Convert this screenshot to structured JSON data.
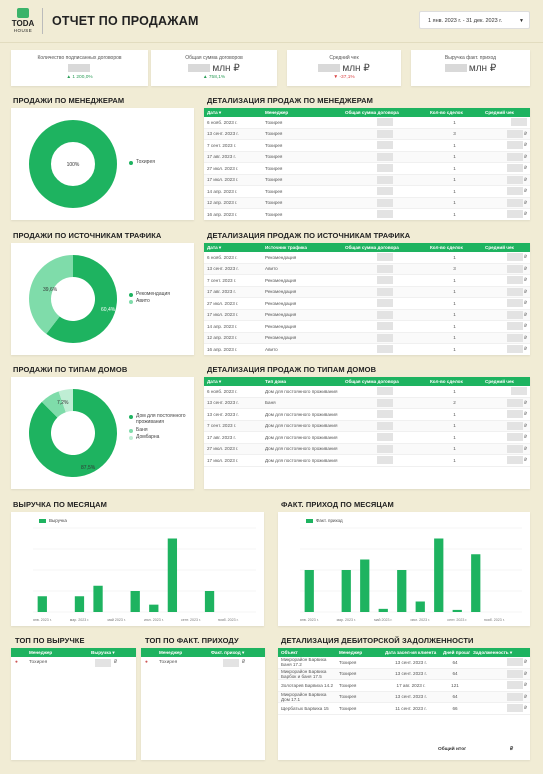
{
  "header": {
    "logo_top": "TODA",
    "logo_bottom": "HOUSE",
    "title": "ОТЧЕТ ПО ПРОДАЖАМ",
    "date_range": "1 янв. 2023 г. - 31 дек. 2023 г."
  },
  "kpis": [
    {
      "label": "Количество подписанных договоров",
      "value": "",
      "delta": "▲ 1 200,0%",
      "dir": "up"
    },
    {
      "label": "Общая сумма договоров",
      "value": "млн ₽",
      "delta": "▲ 758,1%",
      "dir": "up"
    },
    {
      "label": "Средний чек",
      "value": "млн ₽",
      "delta": "▼ -37,1%",
      "dir": "down"
    },
    {
      "label": "Выручка факт. приход",
      "value": "млн ₽",
      "delta": "",
      "dir": "up"
    }
  ],
  "colors": {
    "accent": "#1eb360",
    "light": "#7fdcaa",
    "pale": "#bfeed4",
    "bg": "#f1ecd5"
  },
  "sections": {
    "sales_by_manager": "ПРОДАЖИ ПО МЕНЕДЖЕРАМ",
    "detail_by_manager": "ДЕТАЛИЗАЦИЯ ПРОДАЖ ПО МЕНЕДЖЕРАМ",
    "sales_by_traffic": "ПРОДАЖИ ПО ИСТОЧНИКАМ ТРАФИКА",
    "detail_by_traffic": "ДЕТАЛИЗАЦИЯ ПРОДАЖ ПО ИСТОЧНИКАМ ТРАФИКА",
    "sales_by_house": "ПРОДАЖИ ПО ТИПАМ ДОМОВ",
    "detail_by_house": "ДЕТАЛИЗАЦИЯ ПРОДАЖ ПО ТИПАМ ДОМОВ",
    "revenue_by_month": "ВЫРУЧКА ПО МЕСЯЦАМ",
    "income_by_month": "ФАКТ. ПРИХОД ПО МЕСЯЦАМ",
    "top_revenue": "ТОП ПО ВЫРУЧКЕ",
    "top_income": "ТОП ПО ФАКТ. ПРИХОДУ",
    "receivables": "ДЕТАЛИЗАЦИЯ ДЕБИТОРСКОЙ ЗАДОЛЖЕННОСТИ"
  },
  "donut_manager": {
    "pct_label": "100%",
    "legend": [
      "Тохирея"
    ]
  },
  "donut_traffic": {
    "labels": [
      "39,6%",
      "60,4%"
    ],
    "legend": [
      "Рекомендация",
      "Авито"
    ]
  },
  "donut_house": {
    "labels": [
      "7,2%",
      "87,5%"
    ],
    "legend": [
      "Дом для постоянного проживания",
      "Баня",
      "Домбарна"
    ]
  },
  "table_manager": {
    "headers": [
      "Дата ▾",
      "Менеджер",
      "Общая сумма договора",
      "Кол-во сделок",
      "Средний чек"
    ],
    "rows": [
      [
        "6 нояб. 2023 г.",
        "Тохирея",
        "",
        "1",
        ""
      ],
      [
        "13 сент. 2023 г.",
        "Тохирея",
        "",
        "3",
        "₽"
      ],
      [
        "7 сент. 2023 г.",
        "Тохирея",
        "",
        "1",
        "₽"
      ],
      [
        "17 авг. 2023 г.",
        "Тохирея",
        "",
        "1",
        "₽"
      ],
      [
        "27 июл. 2023 г.",
        "Тохирея",
        "",
        "1",
        "₽"
      ],
      [
        "17 июл. 2023 г.",
        "Тохирея",
        "",
        "1",
        "₽"
      ],
      [
        "14 апр. 2023 г.",
        "Тохирея",
        "",
        "1",
        "₽"
      ],
      [
        "12 апр. 2023 г.",
        "Тохирея",
        "",
        "1",
        "₽"
      ],
      [
        "16 апр. 2023 г.",
        "Тохирея",
        "",
        "1",
        "₽"
      ]
    ]
  },
  "table_traffic": {
    "headers": [
      "Дата ▾",
      "Источник трафика",
      "Общая сумма договора",
      "Кол-во сделок",
      "Средний чек"
    ],
    "rows": [
      [
        "6 нояб. 2023 г.",
        "Рекомендация",
        "",
        "1",
        "₽"
      ],
      [
        "13 сент. 2023 г.",
        "Авито",
        "",
        "3",
        "₽"
      ],
      [
        "7 сент. 2023 г.",
        "Рекомендация",
        "",
        "1",
        "₽"
      ],
      [
        "17 авг. 2023 г.",
        "Рекомендация",
        "",
        "1",
        "₽"
      ],
      [
        "27 июл. 2023 г.",
        "Рекомендация",
        "",
        "1",
        "₽"
      ],
      [
        "17 июл. 2023 г.",
        "Рекомендация",
        "",
        "1",
        "₽"
      ],
      [
        "14 апр. 2023 г.",
        "Рекомендация",
        "",
        "1",
        "₽"
      ],
      [
        "12 апр. 2023 г.",
        "Рекомендация",
        "",
        "1",
        "₽"
      ],
      [
        "16 апр. 2023 г.",
        "Авито",
        "",
        "1",
        "₽"
      ]
    ]
  },
  "table_house": {
    "headers": [
      "Дата ▾",
      "Тип дома",
      "Общая сумма договора",
      "Кол-во сделок",
      "Средний чек"
    ],
    "rows": [
      [
        "6 нояб. 2023 г.",
        "Дом для постоянного проживания",
        "",
        "1",
        ""
      ],
      [
        "13 сент. 2023 г.",
        "Баня",
        "",
        "2",
        "₽"
      ],
      [
        "13 сент. 2023 г.",
        "Дом для постоянного проживания",
        "",
        "1",
        "₽"
      ],
      [
        "7 сент. 2023 г.",
        "Дом для постоянного проживания",
        "",
        "1",
        "₽"
      ],
      [
        "17 авг. 2023 г.",
        "Дом для постоянного проживания",
        "",
        "1",
        "₽"
      ],
      [
        "27 июл. 2023 г.",
        "Дом для постоянного проживания",
        "",
        "1",
        "₽"
      ],
      [
        "17 июл. 2023 г.",
        "Дом для постоянного проживания",
        "",
        "1",
        "₽"
      ]
    ]
  },
  "chart_data": [
    {
      "type": "bar",
      "legend": "Выручка",
      "categories": [
        "1 янв. 2023 г.",
        "1 февр. 2023 г.",
        "1 мар. 2023 г.",
        "1 апр. 2023 г.",
        "1 мая 2023 г.",
        "1 июн. 2023 г.",
        "1 июл. 2023 г.",
        "1 авг. 2023 г.",
        "1 сент. 2023 г.",
        "1 окт. 2023 г.",
        "1 нояб. 2023 г.",
        "1 дек. 2023 г."
      ],
      "tick_labels": [
        "янв. 2023 г.",
        "февр. 2023 г.",
        "мар. 2023 г.",
        "апр. 2023 г.",
        "май 2023 г.",
        "июн. 2023 г.",
        "июл. 2023 г.",
        "авг. 2023 г.",
        "сент. 2023 г.",
        "окт. 2023 г.",
        "нояб. 2023 г.",
        "дек. 2023 г."
      ],
      "values": [
        1.5,
        0,
        1.5,
        2.5,
        0,
        2,
        0.7,
        7,
        0,
        2,
        0,
        0
      ],
      "ylim": [
        0,
        8
      ]
    },
    {
      "type": "bar",
      "legend": "Факт. приход",
      "categories": [
        "1 янв. 2023 г.",
        "1 февр. 2023 г.",
        "1 мар. 2023 г.",
        "1 апр. 2023 г.",
        "1 мая 2023 г.",
        "1 июн. 2023 г.",
        "1 июл. 2023 г.",
        "1 авг. 2023 г.",
        "1 сент. 2023 г.",
        "1 окт. 2023 г.",
        "1 нояб. 2023 г.",
        "1 дек. 2023 г."
      ],
      "tick_labels": [
        "янв. 2023 г.",
        "февр. 2023 г.",
        "мар. 2023 г.",
        "апр. 2023 г.",
        "май 2023 г.",
        "июн. 2023 г.",
        "июл. 2023 г.",
        "авг. 2023 г.",
        "сент. 2023 г.",
        "окт. 2023 г.",
        "нояб. 2023 г.",
        "дек. 2023 г."
      ],
      "values": [
        4,
        0,
        4,
        5,
        0.3,
        4,
        1,
        7,
        0.2,
        5.5,
        0,
        0
      ],
      "ylim": [
        0,
        8
      ]
    }
  ],
  "top_revenue": {
    "headers": [
      "Менеджер",
      "Выручка ▾"
    ],
    "rows": [
      [
        "Тохирея",
        "₽"
      ]
    ]
  },
  "top_income": {
    "headers": [
      "Менеджер",
      "Факт. приход ▾"
    ],
    "rows": [
      [
        "Тохирея",
        "₽"
      ]
    ]
  },
  "receivables": {
    "headers": [
      "Объект",
      "Менеджер",
      "Дата засел-ия клиента",
      "Дней прошло",
      "Задолженность ▾"
    ],
    "rows": [
      [
        "Микрорайон Барвиха Баня 17.2",
        "Тохирея",
        "13 сент. 2023 г.",
        "64",
        "₽"
      ],
      [
        "Микрорайон Барвиха Барбок и баня 17.5",
        "Тохирея",
        "13 сент. 2023 г.",
        "64",
        "₽"
      ],
      [
        "Золотарев Барвиха 14.2",
        "Тохирея",
        "17 авг. 2023 г.",
        "121",
        "₽"
      ],
      [
        "Микрорайон Барвиха Дом 17.1",
        "Тохирея",
        "13 сент. 2023 г.",
        "64",
        "₽"
      ],
      [
        "Щербатых Барвиха 15",
        "Тохирея",
        "11 сент. 2023 г.",
        "66",
        "₽"
      ]
    ],
    "total_label": "Общий итог",
    "total_value": "₽"
  }
}
